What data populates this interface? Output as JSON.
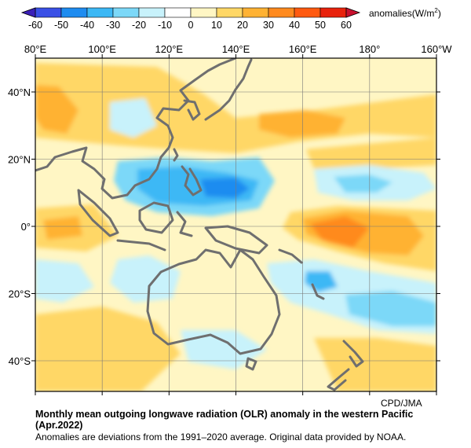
{
  "colorbar": {
    "ticks": [
      "-60",
      "-50",
      "-40",
      "-30",
      "-20",
      "-10",
      "0",
      "10",
      "20",
      "30",
      "40",
      "50",
      "60"
    ],
    "colors": [
      "#3a50e6",
      "#1e8cf0",
      "#3cb8f5",
      "#7cd8f8",
      "#c8f2fb",
      "#ffffff",
      "#fff6c4",
      "#ffd766",
      "#ffb233",
      "#ff8a1e",
      "#ff5a10",
      "#e8220c"
    ],
    "unit_prefix": "anomalies(W/m",
    "unit_sup": "2",
    "unit_suffix": ")"
  },
  "map": {
    "lon_labels": [
      "80°E",
      "100°E",
      "120°E",
      "140°E",
      "160°E",
      "180°",
      "160°W"
    ],
    "lat_labels": [
      "40°N",
      "20°N",
      "0°",
      "20°S",
      "40°S"
    ],
    "coastline_color": "#6f6f6f"
  },
  "credit": "CPD/JMA",
  "title_line1": "Monthly mean outgoing longwave radiation (OLR) anomaly in the western Pacific",
  "title_line2": "(Apr.2022)",
  "note": "Anomalies are deviations from the 1991–2020 average. Original data provided by NOAA."
}
